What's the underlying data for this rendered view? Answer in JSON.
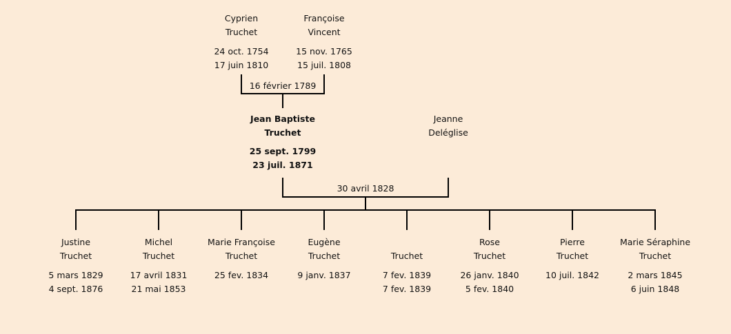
{
  "parents": [
    {
      "first": "Cyprien",
      "last": "Truchet",
      "birth": "24 oct. 1754",
      "death": "17 juin 1810"
    },
    {
      "first": "Françoise",
      "last": "Vincent",
      "birth": "15 nov. 1765",
      "death": "15 juil. 1808"
    }
  ],
  "parents_marriage": "16 février 1789",
  "subject": {
    "first": "Jean Baptiste",
    "last": "Truchet",
    "birth": "25 sept. 1799",
    "death": "23 juil. 1871"
  },
  "spouse": {
    "first": "Jeanne",
    "last": "Deléglise"
  },
  "marriage": "30 avril 1828",
  "children": [
    {
      "first": "Justine",
      "last": "Truchet",
      "birth": "5 mars 1829",
      "death": "4 sept. 1876"
    },
    {
      "first": "Michel",
      "last": "Truchet",
      "birth": "17 avril 1831",
      "death": "21 mai 1853"
    },
    {
      "first": "Marie Françoise",
      "last": "Truchet",
      "birth": "25 fev. 1834",
      "death": ""
    },
    {
      "first": "Eugène",
      "last": "Truchet",
      "birth": "9 janv. 1837",
      "death": ""
    },
    {
      "first": "",
      "last": "Truchet",
      "birth": "7 fev. 1839",
      "death": "7 fev. 1839"
    },
    {
      "first": "Rose",
      "last": "Truchet",
      "birth": "26 janv. 1840",
      "death": "5 fev. 1840"
    },
    {
      "first": "Pierre",
      "last": "Truchet",
      "birth": "10 juil. 1842",
      "death": ""
    },
    {
      "first": "Marie Séraphine",
      "last": "Truchet",
      "birth": "2 mars 1845",
      "death": "6 juin 1848"
    }
  ]
}
